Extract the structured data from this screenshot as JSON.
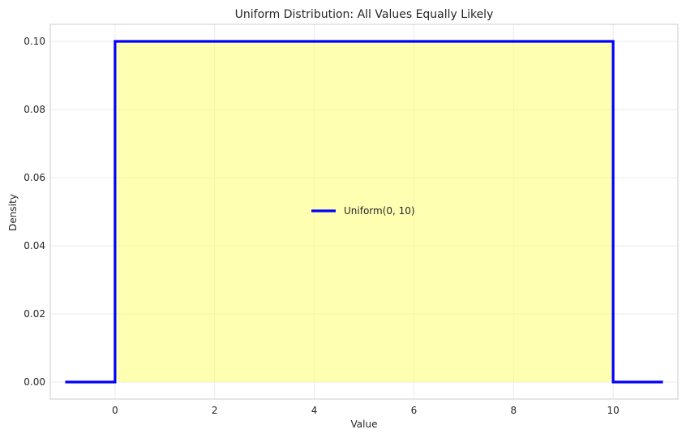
{
  "chart_data": {
    "type": "line",
    "title": "Uniform Distribution: All Values Equally Likely",
    "xlabel": "Value",
    "ylabel": "Density",
    "xlim": [
      -1.3,
      11.3
    ],
    "ylim": [
      -0.005,
      0.105
    ],
    "xticks": [
      0,
      2,
      4,
      6,
      8,
      10
    ],
    "yticks": [
      0.0,
      0.02,
      0.04,
      0.06,
      0.08,
      0.1
    ],
    "xtick_labels": [
      "0",
      "2",
      "4",
      "6",
      "8",
      "10"
    ],
    "ytick_labels": [
      "0.00",
      "0.02",
      "0.04",
      "0.06",
      "0.08",
      "0.10"
    ],
    "grid": true,
    "legend_position": "center",
    "series": [
      {
        "name": "Uniform(0, 10)",
        "color": "#0000ff",
        "fill_color": "#ffff66",
        "x": [
          -1,
          0,
          0,
          10,
          10,
          11
        ],
        "y": [
          0,
          0,
          0.1,
          0.1,
          0,
          0
        ],
        "fill_between": [
          0,
          10
        ]
      }
    ]
  }
}
